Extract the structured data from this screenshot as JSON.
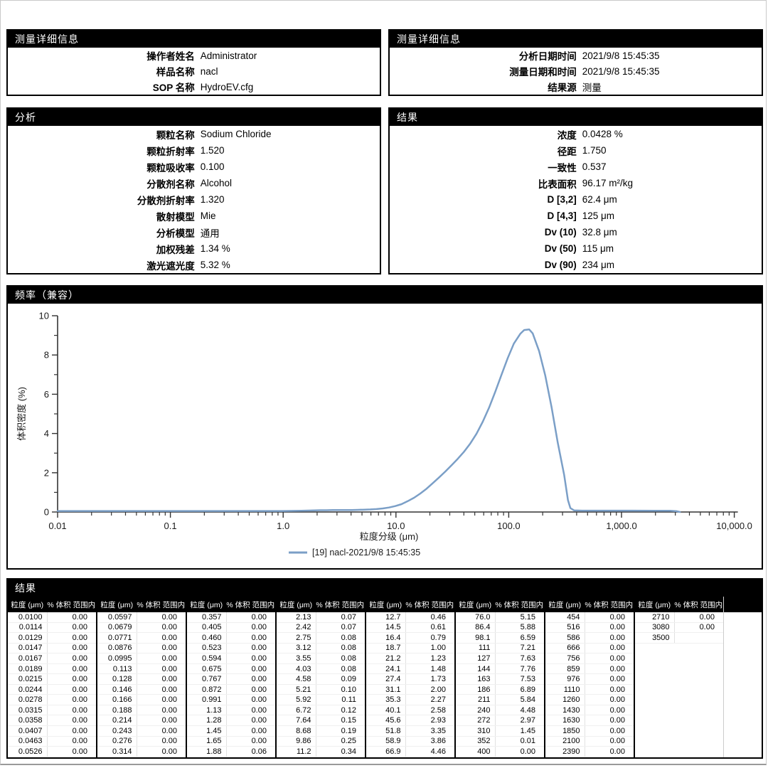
{
  "colors": {
    "accent_curve": "#7b9fc7",
    "header_bg": "#000000",
    "header_fg": "#ffffff",
    "axis": "#333333"
  },
  "panels": {
    "measurement_left": {
      "title": "测量详细信息",
      "rows": [
        {
          "label": "操作者姓名",
          "value": "Administrator"
        },
        {
          "label": "样品名称",
          "value": "nacl"
        },
        {
          "label": "SOP 名称",
          "value": "HydroEV.cfg"
        }
      ]
    },
    "measurement_right": {
      "title": "测量详细信息",
      "rows": [
        {
          "label": "分析日期时间",
          "value": "2021/9/8 15:45:35"
        },
        {
          "label": "测量日期和时间",
          "value": "2021/9/8 15:45:35"
        },
        {
          "label": "结果源",
          "value": "测量"
        }
      ]
    },
    "analysis": {
      "title": "分析",
      "rows": [
        {
          "label": "颗粒名称",
          "value": "Sodium Chloride"
        },
        {
          "label": "颗粒折射率",
          "value": "1.520"
        },
        {
          "label": "颗粒吸收率",
          "value": "0.100"
        },
        {
          "label": "分散剂名称",
          "value": "Alcohol"
        },
        {
          "label": "分散剂折射率",
          "value": "1.320"
        },
        {
          "label": "散射模型",
          "value": "Mie"
        },
        {
          "label": "分析模型",
          "value": "通用"
        },
        {
          "label": "加权残差",
          "value": "1.34 %"
        },
        {
          "label": "激光遮光度",
          "value": "5.32 %"
        }
      ]
    },
    "result": {
      "title": "结果",
      "rows": [
        {
          "label": "浓度",
          "value": "0.0428 %"
        },
        {
          "label": "径距",
          "value": "1.750"
        },
        {
          "label": "一致性",
          "value": "0.537"
        },
        {
          "label": "比表面积",
          "value": "96.17 m²/kg"
        },
        {
          "label": "D [3,2]",
          "value": "62.4 μm"
        },
        {
          "label": "D [4,3]",
          "value": "125 μm"
        },
        {
          "label": "Dv (10)",
          "value": "32.8 μm"
        },
        {
          "label": "Dv (50)",
          "value": "115 μm"
        },
        {
          "label": "Dv (90)",
          "value": "234 μm"
        }
      ]
    }
  },
  "chart_data": {
    "type": "line",
    "title": "频率（兼容）",
    "xlabel": "粒度分级 (μm)",
    "ylabel": "体积密度 (%)",
    "x_scale": "log",
    "xlim": [
      0.01,
      10000
    ],
    "ylim": [
      0,
      10
    ],
    "x_ticks": [
      {
        "value": 0.01,
        "label": "0.01"
      },
      {
        "value": 0.1,
        "label": "0.1"
      },
      {
        "value": 1,
        "label": "1.0"
      },
      {
        "value": 10,
        "label": "10.0"
      },
      {
        "value": 100,
        "label": "100.0"
      },
      {
        "value": 1000,
        "label": "1,000.0"
      },
      {
        "value": 10000,
        "label": "10,000.0"
      }
    ],
    "y_major_ticks": [
      0,
      2,
      4,
      6,
      8,
      10
    ],
    "y_minor_ticks": [
      1,
      3,
      5,
      7,
      9
    ],
    "grid": false,
    "legend_position": "bottom",
    "series": [
      {
        "name": "[19] nacl-2021/9/8 15:45:35",
        "color": "#7b9fc7",
        "x": [
          0.01,
          0.5,
          1.0,
          1.45,
          1.88,
          2.13,
          2.42,
          2.75,
          3.12,
          3.55,
          4.03,
          4.58,
          5.21,
          5.92,
          6.72,
          7.64,
          8.68,
          9.86,
          11.2,
          12.7,
          14.5,
          16.4,
          18.7,
          21.2,
          24.1,
          27.4,
          31.1,
          35.3,
          40.1,
          45.6,
          51.8,
          58.9,
          66.9,
          76.0,
          86.4,
          98.1,
          111,
          127,
          137,
          152,
          163,
          186,
          211,
          240,
          272,
          310,
          335,
          352,
          380,
          450,
          700,
          1200,
          2000,
          2700,
          3100,
          3300
        ],
        "y": [
          0.05,
          0.05,
          0.05,
          0.06,
          0.08,
          0.09,
          0.09,
          0.1,
          0.1,
          0.1,
          0.1,
          0.11,
          0.12,
          0.13,
          0.15,
          0.18,
          0.23,
          0.3,
          0.4,
          0.55,
          0.73,
          0.94,
          1.19,
          1.47,
          1.76,
          2.06,
          2.38,
          2.71,
          3.07,
          3.49,
          3.99,
          4.6,
          5.31,
          6.13,
          7.0,
          7.85,
          8.58,
          9.09,
          9.27,
          9.3,
          9.1,
          8.2,
          6.95,
          5.33,
          3.54,
          1.9,
          0.6,
          0.2,
          0.08,
          0.07,
          0.07,
          0.07,
          0.06,
          0.06,
          0.04,
          0.0
        ]
      }
    ]
  },
  "results_table": {
    "title": "结果",
    "col_headers": {
      "size": "粒度 (μm)",
      "volume": "% 体积 范围内"
    },
    "groups": [
      {
        "rows": [
          [
            "0.0100",
            "0.00"
          ],
          [
            "0.0114",
            "0.00"
          ],
          [
            "0.0129",
            "0.00"
          ],
          [
            "0.0147",
            "0.00"
          ],
          [
            "0.0167",
            "0.00"
          ],
          [
            "0.0189",
            "0.00"
          ],
          [
            "0.0215",
            "0.00"
          ],
          [
            "0.0244",
            "0.00"
          ],
          [
            "0.0278",
            "0.00"
          ],
          [
            "0.0315",
            "0.00"
          ],
          [
            "0.0358",
            "0.00"
          ],
          [
            "0.0407",
            "0.00"
          ],
          [
            "0.0463",
            "0.00"
          ],
          [
            "0.0526",
            "0.00"
          ]
        ]
      },
      {
        "rows": [
          [
            "0.0597",
            "0.00"
          ],
          [
            "0.0679",
            "0.00"
          ],
          [
            "0.0771",
            "0.00"
          ],
          [
            "0.0876",
            "0.00"
          ],
          [
            "0.0995",
            "0.00"
          ],
          [
            "0.113",
            "0.00"
          ],
          [
            "0.128",
            "0.00"
          ],
          [
            "0.146",
            "0.00"
          ],
          [
            "0.166",
            "0.00"
          ],
          [
            "0.188",
            "0.00"
          ],
          [
            "0.214",
            "0.00"
          ],
          [
            "0.243",
            "0.00"
          ],
          [
            "0.276",
            "0.00"
          ],
          [
            "0.314",
            "0.00"
          ]
        ]
      },
      {
        "rows": [
          [
            "0.357",
            "0.00"
          ],
          [
            "0.405",
            "0.00"
          ],
          [
            "0.460",
            "0.00"
          ],
          [
            "0.523",
            "0.00"
          ],
          [
            "0.594",
            "0.00"
          ],
          [
            "0.675",
            "0.00"
          ],
          [
            "0.767",
            "0.00"
          ],
          [
            "0.872",
            "0.00"
          ],
          [
            "0.991",
            "0.00"
          ],
          [
            "1.13",
            "0.00"
          ],
          [
            "1.28",
            "0.00"
          ],
          [
            "1.45",
            "0.00"
          ],
          [
            "1.65",
            "0.00"
          ],
          [
            "1.88",
            "0.06"
          ]
        ]
      },
      {
        "rows": [
          [
            "2.13",
            "0.07"
          ],
          [
            "2.42",
            "0.07"
          ],
          [
            "2.75",
            "0.08"
          ],
          [
            "3.12",
            "0.08"
          ],
          [
            "3.55",
            "0.08"
          ],
          [
            "4.03",
            "0.08"
          ],
          [
            "4.58",
            "0.09"
          ],
          [
            "5.21",
            "0.10"
          ],
          [
            "5.92",
            "0.11"
          ],
          [
            "6.72",
            "0.12"
          ],
          [
            "7.64",
            "0.15"
          ],
          [
            "8.68",
            "0.19"
          ],
          [
            "9.86",
            "0.25"
          ],
          [
            "11.2",
            "0.34"
          ]
        ]
      },
      {
        "rows": [
          [
            "12.7",
            "0.46"
          ],
          [
            "14.5",
            "0.61"
          ],
          [
            "16.4",
            "0.79"
          ],
          [
            "18.7",
            "1.00"
          ],
          [
            "21.2",
            "1.23"
          ],
          [
            "24.1",
            "1.48"
          ],
          [
            "27.4",
            "1.73"
          ],
          [
            "31.1",
            "2.00"
          ],
          [
            "35.3",
            "2.27"
          ],
          [
            "40.1",
            "2.58"
          ],
          [
            "45.6",
            "2.93"
          ],
          [
            "51.8",
            "3.35"
          ],
          [
            "58.9",
            "3.86"
          ],
          [
            "66.9",
            "4.46"
          ]
        ]
      },
      {
        "rows": [
          [
            "76.0",
            "5.15"
          ],
          [
            "86.4",
            "5.88"
          ],
          [
            "98.1",
            "6.59"
          ],
          [
            "111",
            "7.21"
          ],
          [
            "127",
            "7.63"
          ],
          [
            "144",
            "7.76"
          ],
          [
            "163",
            "7.53"
          ],
          [
            "186",
            "6.89"
          ],
          [
            "211",
            "5.84"
          ],
          [
            "240",
            "4.48"
          ],
          [
            "272",
            "2.97"
          ],
          [
            "310",
            "1.45"
          ],
          [
            "352",
            "0.01"
          ],
          [
            "400",
            "0.00"
          ]
        ]
      },
      {
        "rows": [
          [
            "454",
            "0.00"
          ],
          [
            "516",
            "0.00"
          ],
          [
            "586",
            "0.00"
          ],
          [
            "666",
            "0.00"
          ],
          [
            "756",
            "0.00"
          ],
          [
            "859",
            "0.00"
          ],
          [
            "976",
            "0.00"
          ],
          [
            "1110",
            "0.00"
          ],
          [
            "1260",
            "0.00"
          ],
          [
            "1430",
            "0.00"
          ],
          [
            "1630",
            "0.00"
          ],
          [
            "1850",
            "0.00"
          ],
          [
            "2100",
            "0.00"
          ],
          [
            "2390",
            "0.00"
          ]
        ]
      },
      {
        "rows": [
          [
            "2710",
            "0.00"
          ],
          [
            "3080",
            "0.00"
          ],
          [
            "3500",
            ""
          ]
        ]
      }
    ]
  }
}
